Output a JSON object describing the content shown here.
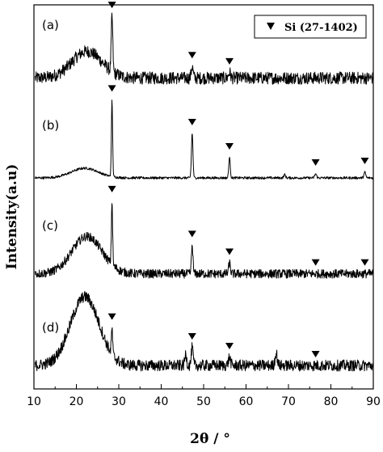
{
  "chart_data": {
    "type": "line",
    "xlabel": "2θ / °",
    "ylabel": "Intensity(a.u)",
    "xlim": [
      10,
      90
    ],
    "xticks": [
      10,
      20,
      30,
      40,
      50,
      60,
      70,
      80,
      90
    ],
    "grid": false,
    "yticks_shown": false,
    "legend": {
      "placement": "top-right",
      "marker": "filled-down-triangle",
      "label": "Si (27-1402)"
    },
    "marker_color": "#000000",
    "line_color": "#000000",
    "series": [
      {
        "label": "(a)",
        "amorphous_hump": {
          "center": 22.5,
          "width": 5.0,
          "height": 0.3
        },
        "baseline": 0.05,
        "noise": 0.07,
        "peaks": [
          {
            "x": 28.4,
            "height": 0.62,
            "width": 0.25
          },
          {
            "x": 47.3,
            "height": 0.13,
            "width": 0.3
          },
          {
            "x": 56.1,
            "height": 0.06,
            "width": 0.35
          }
        ],
        "markers_x": [
          28.4,
          47.3,
          56.1
        ]
      },
      {
        "label": "(b)",
        "amorphous_hump": {
          "center": 22.0,
          "width": 4.5,
          "height": 0.12
        },
        "baseline": 0.03,
        "noise": 0.015,
        "peaks": [
          {
            "x": 28.4,
            "height": 0.95,
            "width": 0.2
          },
          {
            "x": 47.3,
            "height": 0.55,
            "width": 0.25
          },
          {
            "x": 56.1,
            "height": 0.25,
            "width": 0.25
          },
          {
            "x": 69.1,
            "height": 0.04,
            "width": 0.3
          },
          {
            "x": 76.4,
            "height": 0.05,
            "width": 0.3
          },
          {
            "x": 88.0,
            "height": 0.07,
            "width": 0.3
          }
        ],
        "markers_x": [
          28.4,
          47.3,
          56.1,
          76.4,
          88.0
        ]
      },
      {
        "label": "(c)",
        "amorphous_hump": {
          "center": 22.5,
          "width": 5.0,
          "height": 0.42
        },
        "baseline": 0.04,
        "noise": 0.05,
        "peaks": [
          {
            "x": 28.4,
            "height": 0.72,
            "width": 0.2
          },
          {
            "x": 47.3,
            "height": 0.32,
            "width": 0.25
          },
          {
            "x": 56.1,
            "height": 0.12,
            "width": 0.3
          }
        ],
        "markers_x": [
          28.4,
          47.3,
          56.1,
          76.4,
          88.0
        ]
      },
      {
        "label": "(d)",
        "amorphous_hump": {
          "center": 22.0,
          "width": 4.8,
          "height": 0.85
        },
        "baseline": 0.08,
        "noise": 0.07,
        "peaks": [
          {
            "x": 28.4,
            "height": 0.32,
            "width": 0.2
          },
          {
            "x": 45.8,
            "height": 0.14,
            "width": 0.3
          },
          {
            "x": 47.3,
            "height": 0.22,
            "width": 0.3
          },
          {
            "x": 56.1,
            "height": 0.1,
            "width": 0.35
          },
          {
            "x": 67.1,
            "height": 0.16,
            "width": 0.35
          }
        ],
        "markers_x": [
          28.4,
          47.3,
          56.1,
          76.4
        ]
      }
    ]
  }
}
